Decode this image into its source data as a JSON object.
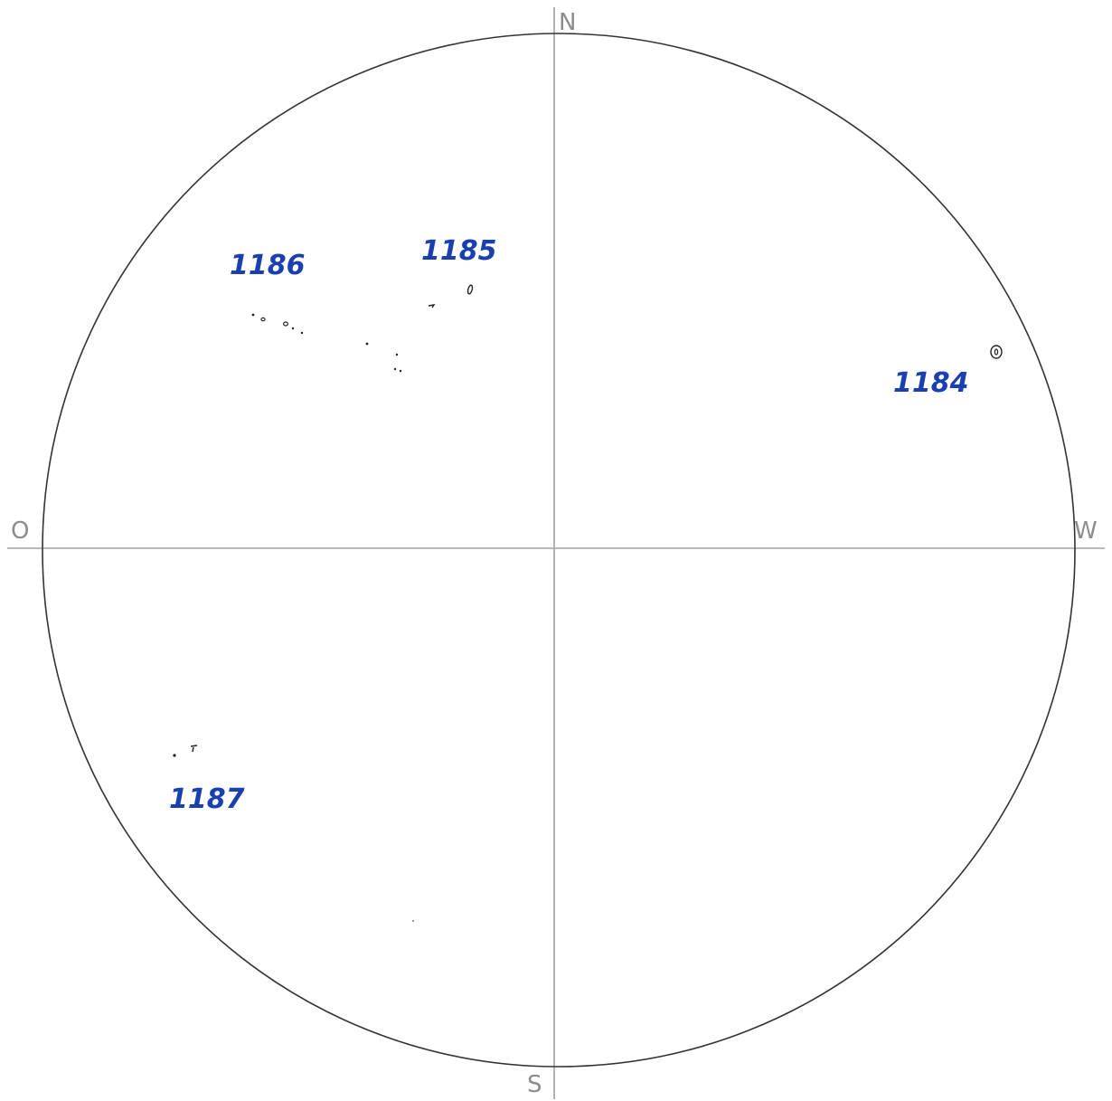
{
  "disk": {
    "directions": {
      "north": "N",
      "south": "S",
      "east": "O",
      "west": "W"
    },
    "colors": {
      "outline": "#333333",
      "axes": "#a0a0a0",
      "cardinal_text": "#8c8c8c",
      "annotation_ink": "#1a3fb0",
      "spot_ink": "#222222"
    }
  },
  "groups": [
    {
      "id": "group-1184",
      "label": "1184"
    },
    {
      "id": "group-1185",
      "label": "1185"
    },
    {
      "id": "group-1186",
      "label": "1186"
    },
    {
      "id": "group-1187",
      "label": "1187"
    }
  ]
}
